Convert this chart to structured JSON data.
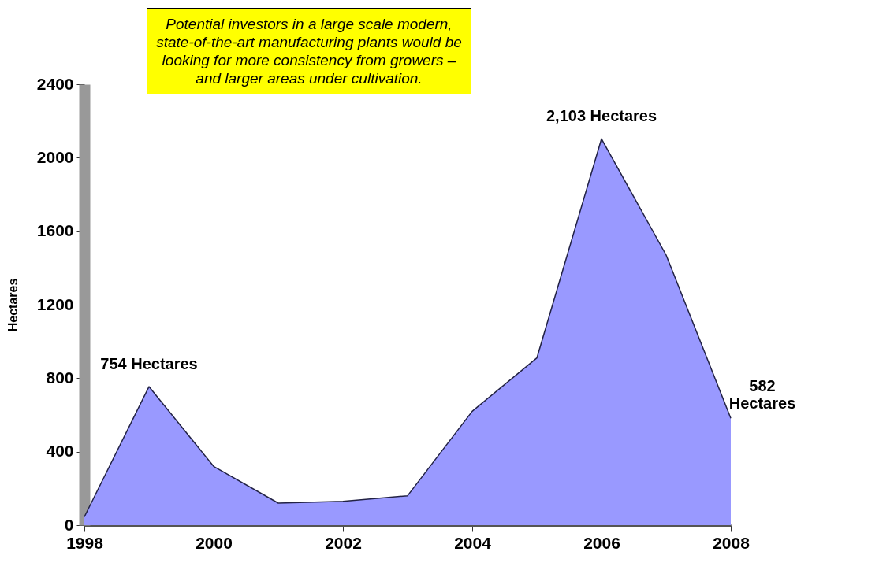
{
  "chart_data": {
    "type": "area",
    "ylabel": "Hectares",
    "annotations": [
      "Potential investors in a large scale modern, state-of-the-art manufacturing plants would be looking for more consistency from growers –and larger areas under cultivation."
    ],
    "x": [
      1998,
      1999,
      2000,
      2001,
      2002,
      2003,
      2004,
      2005,
      2006,
      2007,
      2008
    ],
    "series": [
      {
        "color": "#9999ff",
        "values": [
          45,
          754,
          320,
          120,
          130,
          160,
          620,
          910,
          2103,
          1470,
          582
        ],
        "value_labels": [
          null,
          "754 Hectares",
          null,
          null,
          null,
          null,
          null,
          null,
          "2,103 Hectares",
          null,
          "582 Hectares"
        ]
      }
    ],
    "xlim": [
      1998,
      2008
    ],
    "xticks": [
      1998,
      2000,
      2002,
      2004,
      2006,
      2008
    ],
    "ylim": [
      0,
      2400
    ],
    "yticks": [
      0,
      400,
      800,
      1200,
      1600,
      2000,
      2400
    ],
    "grid": false
  }
}
